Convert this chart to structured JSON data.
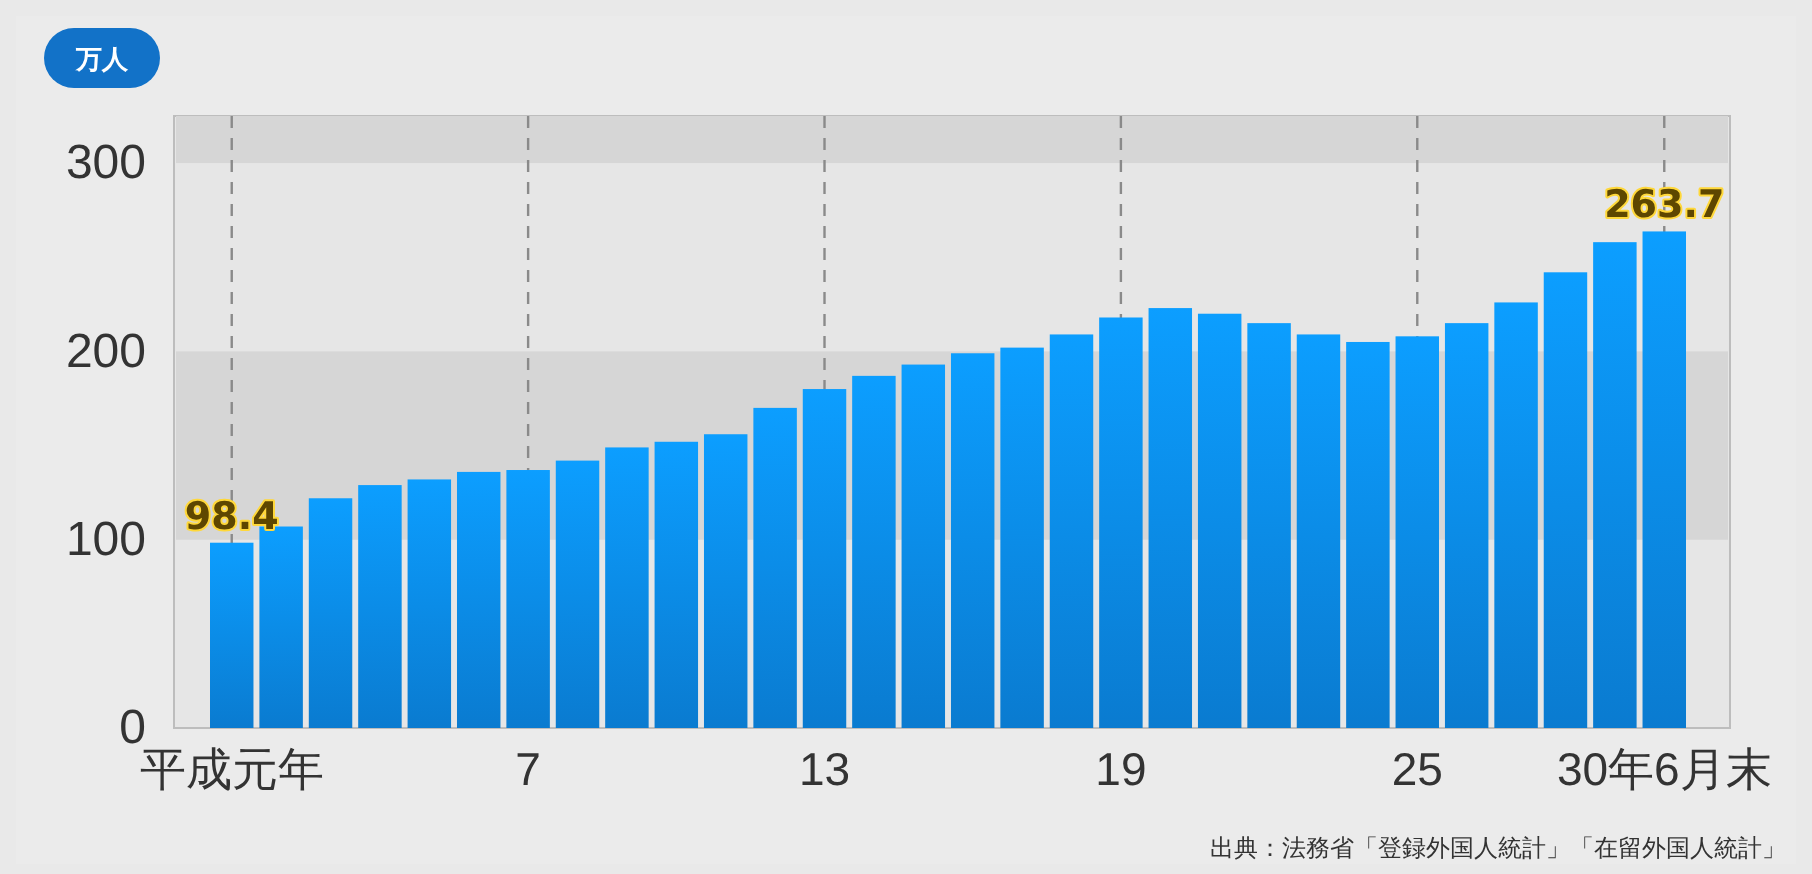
{
  "chart_data": {
    "type": "bar",
    "ylabel": "万人",
    "categories": [
      "平成元年",
      null,
      null,
      null,
      null,
      null,
      "7",
      null,
      null,
      null,
      null,
      null,
      "13",
      null,
      null,
      null,
      null,
      null,
      "19",
      null,
      null,
      null,
      null,
      null,
      "25",
      null,
      null,
      null,
      null,
      "30年6月末"
    ],
    "values": [
      98.4,
      107,
      122,
      129,
      132,
      136,
      137,
      142,
      149,
      152,
      156,
      170,
      180,
      187,
      193,
      199,
      202,
      209,
      218,
      223,
      220,
      215,
      209,
      205,
      208,
      215,
      226,
      242,
      258,
      263.7
    ],
    "value_labels": [
      "98.4",
      null,
      null,
      null,
      null,
      null,
      null,
      null,
      null,
      null,
      null,
      null,
      null,
      null,
      null,
      null,
      null,
      null,
      null,
      null,
      null,
      null,
      null,
      null,
      null,
      null,
      null,
      null,
      null,
      "263.7"
    ],
    "color": "#0b8ef0",
    "ylim": [
      0,
      325
    ],
    "yticks": [
      0,
      100,
      200,
      300
    ],
    "grid": "x",
    "bands": [
      {
        "axis": "y",
        "from": 100,
        "to": 200,
        "color": "#d6d6d6"
      },
      {
        "axis": "y",
        "from": 300,
        "to": 325,
        "color": "#d6d6d6"
      }
    ],
    "annotations": [
      "出典：法務省「登録外国人統計」「在留外国人統計」"
    ]
  }
}
